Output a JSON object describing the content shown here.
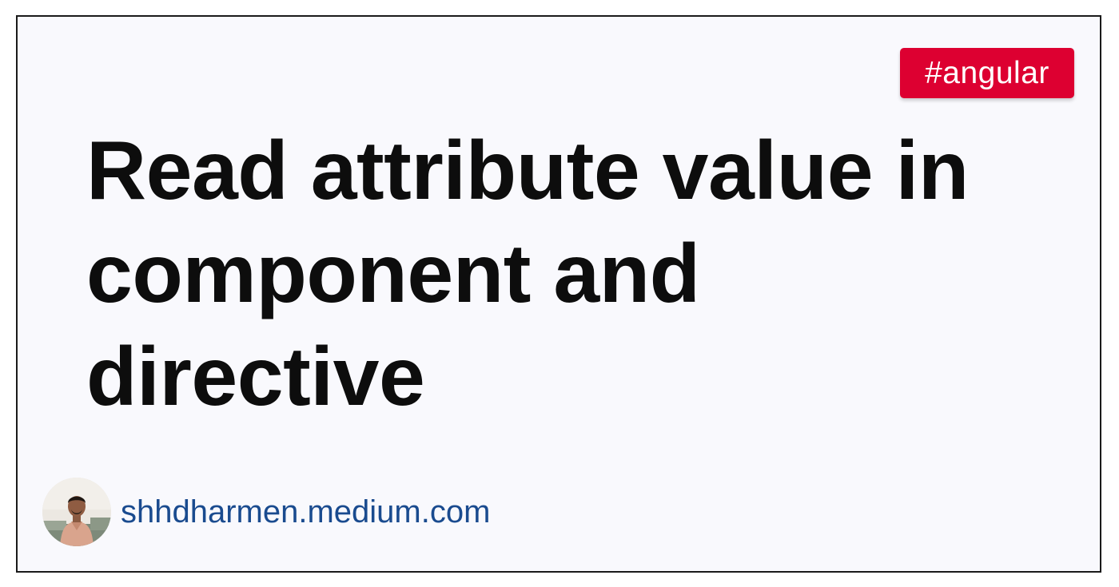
{
  "tag": {
    "label": "#angular",
    "color": "#dd0031"
  },
  "title": {
    "lines": [
      "Read attribute value in",
      "component and",
      "directive"
    ]
  },
  "author": {
    "avatar": "author-avatar-photo",
    "site": "shhdharmen.medium.com",
    "link_color": "#1a4b8f"
  }
}
